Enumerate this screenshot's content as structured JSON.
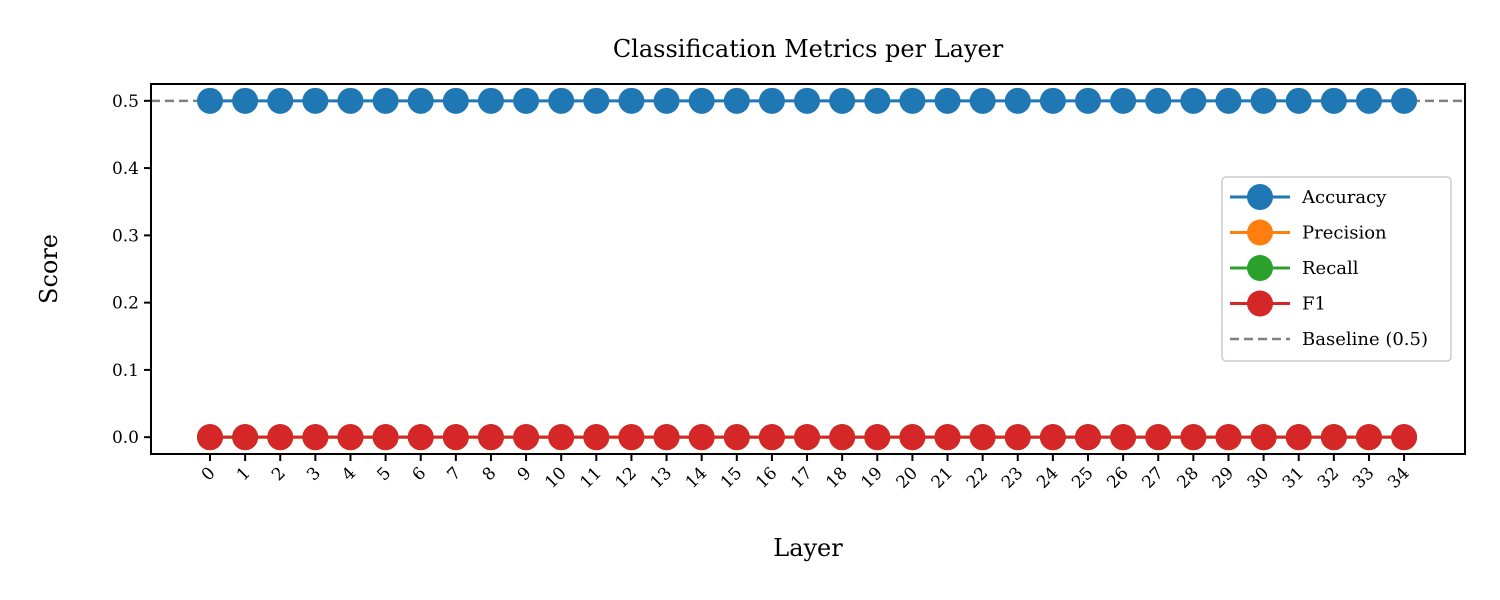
{
  "chart_data": {
    "type": "line",
    "title": "Classification Metrics per Layer",
    "xlabel": "Layer",
    "ylabel": "Score",
    "x": [
      0,
      1,
      2,
      3,
      4,
      5,
      6,
      7,
      8,
      9,
      10,
      11,
      12,
      13,
      14,
      15,
      16,
      17,
      18,
      19,
      20,
      21,
      22,
      23,
      24,
      25,
      26,
      27,
      28,
      29,
      30,
      31,
      32,
      33,
      34
    ],
    "x_ticks": [
      "0",
      "1",
      "2",
      "3",
      "4",
      "5",
      "6",
      "7",
      "8",
      "9",
      "10",
      "11",
      "12",
      "13",
      "14",
      "15",
      "16",
      "17",
      "18",
      "19",
      "20",
      "21",
      "22",
      "23",
      "24",
      "25",
      "26",
      "27",
      "28",
      "29",
      "30",
      "31",
      "32",
      "33",
      "34"
    ],
    "y_ticks": [
      "0.0",
      "0.1",
      "0.2",
      "0.3",
      "0.4",
      "0.5"
    ],
    "ylim": [
      -0.025,
      0.525
    ],
    "grid": false,
    "legend_position": "center-right",
    "series": [
      {
        "name": "Accuracy",
        "color": "#1f77b4",
        "marker": "circle",
        "values": [
          0.5,
          0.5,
          0.5,
          0.5,
          0.5,
          0.5,
          0.5,
          0.5,
          0.5,
          0.5,
          0.5,
          0.5,
          0.5,
          0.5,
          0.5,
          0.5,
          0.5,
          0.5,
          0.5,
          0.5,
          0.5,
          0.5,
          0.5,
          0.5,
          0.5,
          0.5,
          0.5,
          0.5,
          0.5,
          0.5,
          0.5,
          0.5,
          0.5,
          0.5,
          0.5
        ]
      },
      {
        "name": "Precision",
        "color": "#ff7f0e",
        "marker": "circle",
        "values": [
          0,
          0,
          0,
          0,
          0,
          0,
          0,
          0,
          0,
          0,
          0,
          0,
          0,
          0,
          0,
          0,
          0,
          0,
          0,
          0,
          0,
          0,
          0,
          0,
          0,
          0,
          0,
          0,
          0,
          0,
          0,
          0,
          0,
          0,
          0
        ]
      },
      {
        "name": "Recall",
        "color": "#2ca02c",
        "marker": "circle",
        "values": [
          0,
          0,
          0,
          0,
          0,
          0,
          0,
          0,
          0,
          0,
          0,
          0,
          0,
          0,
          0,
          0,
          0,
          0,
          0,
          0,
          0,
          0,
          0,
          0,
          0,
          0,
          0,
          0,
          0,
          0,
          0,
          0,
          0,
          0,
          0
        ]
      },
      {
        "name": "F1",
        "color": "#d62728",
        "marker": "circle",
        "values": [
          0,
          0,
          0,
          0,
          0,
          0,
          0,
          0,
          0,
          0,
          0,
          0,
          0,
          0,
          0,
          0,
          0,
          0,
          0,
          0,
          0,
          0,
          0,
          0,
          0,
          0,
          0,
          0,
          0,
          0,
          0,
          0,
          0,
          0,
          0
        ]
      }
    ],
    "reference_line": {
      "name": "Baseline (0.5)",
      "value": 0.5,
      "color": "#808080",
      "style": "dashed"
    }
  }
}
